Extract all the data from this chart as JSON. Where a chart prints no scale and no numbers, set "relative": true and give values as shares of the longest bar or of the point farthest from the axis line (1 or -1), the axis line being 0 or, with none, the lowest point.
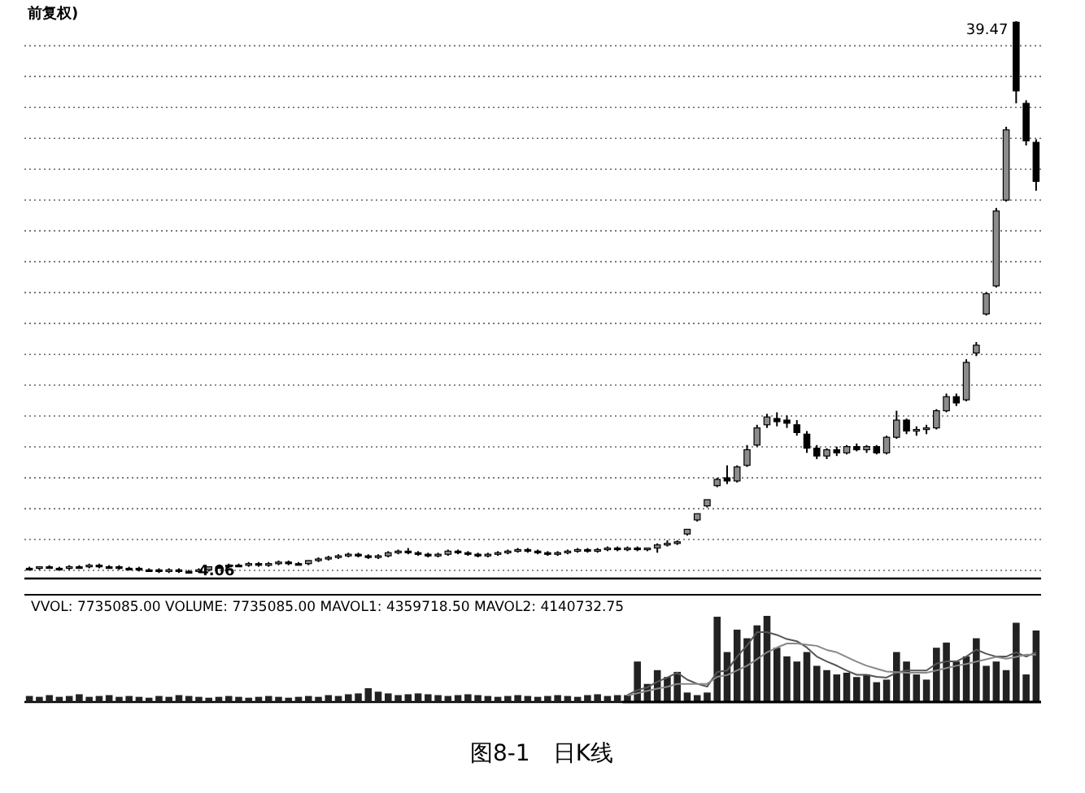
{
  "chart_data": [
    {
      "type": "candlestick",
      "title": "前复权)",
      "color": "#000000",
      "grid": "y",
      "categories": [
        null,
        null,
        null,
        null,
        null,
        null,
        null,
        null,
        null,
        null,
        null,
        null,
        null,
        null,
        null,
        null,
        null,
        null,
        null,
        null,
        null,
        null,
        null,
        null,
        null,
        null,
        null,
        null,
        null,
        null,
        null,
        null,
        null,
        null,
        null,
        null,
        null,
        null,
        null,
        null,
        null,
        null,
        null,
        null,
        null,
        null,
        null,
        null,
        null,
        null,
        null,
        null,
        null,
        null,
        null,
        null,
        null,
        null,
        null,
        null,
        null,
        null,
        null,
        null,
        null,
        null,
        null,
        null,
        null,
        null,
        null,
        null,
        null,
        null,
        null,
        null,
        null,
        null,
        null,
        null,
        null,
        null,
        null,
        null,
        null,
        null,
        null,
        null,
        null,
        null,
        null,
        null,
        null,
        null,
        null,
        null,
        null,
        null,
        null,
        null,
        null,
        null
      ],
      "yticks": [
        {
          "value": 4.27,
          "label": null
        },
        {
          "value": 6.25,
          "label": null
        },
        {
          "value": 8.22,
          "label": null
        },
        {
          "value": 10.2,
          "label": null
        },
        {
          "value": 12.18,
          "label": null
        },
        {
          "value": 14.16,
          "label": null
        },
        {
          "value": 16.14,
          "label": null
        },
        {
          "value": 18.11,
          "label": null
        },
        {
          "value": 20.09,
          "label": null
        },
        {
          "value": 22.07,
          "label": null
        },
        {
          "value": 24.05,
          "label": null
        },
        {
          "value": 26.03,
          "label": null
        },
        {
          "value": 28.0,
          "label": null
        },
        {
          "value": 29.98,
          "label": null
        },
        {
          "value": 31.96,
          "label": null
        },
        {
          "value": 33.94,
          "label": null
        },
        {
          "value": 35.92,
          "label": null
        },
        {
          "value": 37.89,
          "label": null
        }
      ],
      "annotations": [
        "39.47",
        "4.06"
      ],
      "ohlc": [
        [
          4.4,
          4.5,
          4.3,
          4.4
        ],
        [
          4.4,
          4.5,
          4.3,
          4.5
        ],
        [
          4.5,
          4.6,
          4.4,
          4.4
        ],
        [
          4.4,
          4.5,
          4.3,
          4.4
        ],
        [
          4.4,
          4.6,
          4.3,
          4.5
        ],
        [
          4.5,
          4.6,
          4.4,
          4.5
        ],
        [
          4.5,
          4.7,
          4.4,
          4.6
        ],
        [
          4.6,
          4.7,
          4.4,
          4.5
        ],
        [
          4.5,
          4.6,
          4.4,
          4.5
        ],
        [
          4.5,
          4.6,
          4.3,
          4.4
        ],
        [
          4.4,
          4.5,
          4.3,
          4.4
        ],
        [
          4.4,
          4.5,
          4.2,
          4.3
        ],
        [
          4.3,
          4.4,
          4.2,
          4.3
        ],
        [
          4.3,
          4.4,
          4.1,
          4.2
        ],
        [
          4.2,
          4.4,
          4.1,
          4.3
        ],
        [
          4.3,
          4.4,
          4.1,
          4.2
        ],
        [
          4.2,
          4.3,
          4.06,
          4.2
        ],
        [
          4.2,
          4.4,
          4.1,
          4.3
        ],
        [
          4.3,
          4.5,
          4.2,
          4.5
        ],
        [
          4.5,
          4.6,
          4.4,
          4.5
        ],
        [
          4.5,
          4.7,
          4.4,
          4.6
        ],
        [
          4.6,
          4.7,
          4.5,
          4.6
        ],
        [
          4.6,
          4.8,
          4.5,
          4.7
        ],
        [
          4.7,
          4.8,
          4.5,
          4.6
        ],
        [
          4.6,
          4.8,
          4.5,
          4.7
        ],
        [
          4.7,
          4.9,
          4.6,
          4.8
        ],
        [
          4.8,
          4.9,
          4.6,
          4.7
        ],
        [
          4.7,
          4.8,
          4.6,
          4.7
        ],
        [
          4.7,
          4.9,
          4.6,
          4.9
        ],
        [
          4.9,
          5.1,
          4.8,
          5.0
        ],
        [
          5.0,
          5.2,
          4.9,
          5.1
        ],
        [
          5.1,
          5.3,
          5.0,
          5.2
        ],
        [
          5.2,
          5.4,
          5.1,
          5.3
        ],
        [
          5.3,
          5.4,
          5.1,
          5.2
        ],
        [
          5.2,
          5.3,
          5.0,
          5.1
        ],
        [
          5.1,
          5.3,
          5.0,
          5.2
        ],
        [
          5.2,
          5.5,
          5.1,
          5.4
        ],
        [
          5.4,
          5.6,
          5.3,
          5.5
        ],
        [
          5.5,
          5.7,
          5.3,
          5.4
        ],
        [
          5.4,
          5.5,
          5.2,
          5.3
        ],
        [
          5.3,
          5.4,
          5.1,
          5.2
        ],
        [
          5.2,
          5.4,
          5.1,
          5.3
        ],
        [
          5.3,
          5.6,
          5.2,
          5.5
        ],
        [
          5.5,
          5.6,
          5.3,
          5.4
        ],
        [
          5.4,
          5.5,
          5.2,
          5.3
        ],
        [
          5.3,
          5.4,
          5.1,
          5.2
        ],
        [
          5.2,
          5.4,
          5.1,
          5.3
        ],
        [
          5.3,
          5.5,
          5.2,
          5.4
        ],
        [
          5.4,
          5.6,
          5.3,
          5.5
        ],
        [
          5.5,
          5.7,
          5.4,
          5.6
        ],
        [
          5.6,
          5.7,
          5.4,
          5.5
        ],
        [
          5.5,
          5.6,
          5.3,
          5.4
        ],
        [
          5.4,
          5.5,
          5.2,
          5.3
        ],
        [
          5.3,
          5.5,
          5.2,
          5.4
        ],
        [
          5.4,
          5.6,
          5.3,
          5.5
        ],
        [
          5.5,
          5.7,
          5.4,
          5.6
        ],
        [
          5.6,
          5.7,
          5.4,
          5.5
        ],
        [
          5.5,
          5.7,
          5.4,
          5.6
        ],
        [
          5.6,
          5.8,
          5.5,
          5.7
        ],
        [
          5.7,
          5.8,
          5.5,
          5.6
        ],
        [
          5.6,
          5.8,
          5.5,
          5.7
        ],
        [
          5.7,
          5.8,
          5.5,
          5.6
        ],
        [
          5.6,
          5.7,
          5.5,
          5.7
        ],
        [
          5.7,
          6.0,
          5.4,
          5.9
        ],
        [
          5.9,
          6.2,
          5.8,
          6.0
        ],
        [
          6.0,
          6.2,
          5.9,
          6.1
        ],
        [
          6.6,
          6.9,
          6.5,
          6.9
        ],
        [
          7.5,
          7.9,
          7.4,
          7.9
        ],
        [
          8.4,
          8.8,
          8.3,
          8.8
        ],
        [
          9.7,
          10.2,
          9.6,
          10.1
        ],
        [
          10.2,
          11.0,
          9.8,
          10.0
        ],
        [
          10.0,
          11.0,
          9.9,
          10.9
        ],
        [
          11.0,
          12.3,
          10.9,
          12.0
        ],
        [
          12.3,
          13.6,
          12.2,
          13.4
        ],
        [
          13.6,
          14.3,
          13.4,
          14.1
        ],
        [
          14.0,
          14.4,
          13.5,
          13.8
        ],
        [
          13.9,
          14.2,
          13.4,
          13.7
        ],
        [
          13.6,
          13.9,
          12.9,
          13.1
        ],
        [
          13.0,
          13.2,
          11.8,
          12.1
        ],
        [
          12.1,
          12.3,
          11.4,
          11.6
        ],
        [
          11.6,
          12.1,
          11.4,
          12.0
        ],
        [
          12.0,
          12.2,
          11.6,
          11.8
        ],
        [
          11.8,
          12.3,
          11.7,
          12.2
        ],
        [
          12.2,
          12.4,
          11.9,
          12.0
        ],
        [
          12.0,
          12.3,
          11.8,
          12.2
        ],
        [
          12.2,
          12.3,
          11.7,
          11.8
        ],
        [
          11.8,
          12.9,
          11.7,
          12.8
        ],
        [
          12.8,
          14.5,
          12.7,
          13.9
        ],
        [
          13.9,
          14.0,
          13.0,
          13.2
        ],
        [
          13.2,
          13.5,
          12.9,
          13.3
        ],
        [
          13.3,
          13.6,
          13.0,
          13.4
        ],
        [
          13.4,
          14.6,
          13.3,
          14.5
        ],
        [
          14.5,
          15.6,
          14.4,
          15.4
        ],
        [
          15.4,
          15.6,
          14.8,
          15.0
        ],
        [
          15.2,
          17.8,
          15.1,
          17.6
        ],
        [
          18.2,
          18.9,
          18.0,
          18.7
        ],
        [
          20.7,
          22.1,
          20.6,
          22.0
        ],
        [
          22.5,
          27.5,
          22.4,
          27.3
        ],
        [
          28.0,
          32.7,
          27.9,
          32.5
        ],
        [
          39.4,
          39.47,
          34.2,
          35.0
        ],
        [
          34.2,
          34.4,
          31.5,
          31.8
        ],
        [
          31.7,
          31.9,
          28.6,
          29.2
        ]
      ]
    },
    {
      "type": "bar",
      "relative": true,
      "title": "VVOL: 7735085.00  VOLUME: 7735085.00 MAVOL1: 4359718.50 MAVOL2: 4140732.75",
      "color": "#222222",
      "annotations": [
        "图8-1　日K线"
      ],
      "categories": [
        null,
        null,
        null,
        null,
        null,
        null,
        null,
        null,
        null,
        null,
        null,
        null,
        null,
        null,
        null,
        null,
        null,
        null,
        null,
        null,
        null,
        null,
        null,
        null,
        null,
        null,
        null,
        null,
        null,
        null,
        null,
        null,
        null,
        null,
        null,
        null,
        null,
        null,
        null,
        null,
        null,
        null,
        null,
        null,
        null,
        null,
        null,
        null,
        null,
        null,
        null,
        null,
        null,
        null,
        null,
        null,
        null,
        null,
        null,
        null,
        null,
        null,
        null,
        null,
        null,
        null,
        null,
        null,
        null,
        null,
        null,
        null,
        null,
        null,
        null,
        null,
        null,
        null,
        null,
        null,
        null,
        null,
        null,
        null,
        null,
        null,
        null,
        null,
        null,
        null,
        null,
        null,
        null,
        null,
        null,
        null,
        null,
        null,
        null,
        null,
        null,
        null
      ],
      "values": [
        0.07,
        0.06,
        0.08,
        0.06,
        0.07,
        0.09,
        0.06,
        0.07,
        0.08,
        0.06,
        0.07,
        0.06,
        0.05,
        0.07,
        0.06,
        0.08,
        0.07,
        0.06,
        0.05,
        0.06,
        0.07,
        0.06,
        0.05,
        0.06,
        0.07,
        0.06,
        0.05,
        0.06,
        0.07,
        0.06,
        0.08,
        0.07,
        0.09,
        0.1,
        0.16,
        0.12,
        0.1,
        0.08,
        0.09,
        0.1,
        0.09,
        0.08,
        0.07,
        0.08,
        0.09,
        0.08,
        0.07,
        0.06,
        0.07,
        0.08,
        0.07,
        0.06,
        0.07,
        0.08,
        0.07,
        0.06,
        0.08,
        0.09,
        0.07,
        0.08,
        0.08,
        0.47,
        0.21,
        0.37,
        0.29,
        0.35,
        0.11,
        0.08,
        0.11,
        0.99,
        0.58,
        0.84,
        0.74,
        0.89,
        1,
        0.63,
        0.53,
        0.47,
        0.58,
        0.42,
        0.37,
        0.32,
        0.34,
        0.29,
        0.32,
        0.23,
        0.26,
        0.58,
        0.47,
        0.32,
        0.26,
        0.63,
        0.69,
        0.47,
        0.53,
        0.74,
        0.42,
        0.47,
        0.37,
        0.92,
        0.32,
        0.83
      ]
    },
    {
      "type": "line",
      "relative": true,
      "categories": [
        null,
        null,
        null,
        null,
        null,
        null,
        null,
        null,
        null,
        null,
        null,
        null,
        null,
        null,
        null,
        null,
        null,
        null,
        null,
        null,
        null,
        null,
        null,
        null,
        null,
        null,
        null,
        null,
        null,
        null,
        null,
        null,
        null,
        null,
        null,
        null,
        null,
        null,
        null,
        null,
        null,
        null
      ],
      "series": [
        {
          "color": "#555555",
          "values": [
            0.1,
            0.17,
            0.21,
            0.29,
            0.35,
            0.42,
            0.32,
            0.26,
            0.22,
            0.43,
            0.45,
            0.65,
            0.81,
            1,
            1,
            0.96,
            0.9,
            0.87,
            0.78,
            0.65,
            0.58,
            0.52,
            0.45,
            0.39,
            0.39,
            0.36,
            0.35,
            0.42,
            0.45,
            0.45,
            0.45,
            0.55,
            0.58,
            0.58,
            0.65,
            0.75,
            0.69,
            0.65,
            0.65,
            0.71,
            0.65,
            0.71
          ]
        }
      ]
    },
    {
      "type": "line",
      "relative": true,
      "categories": [
        null,
        null,
        null,
        null,
        null,
        null,
        null,
        null,
        null,
        null,
        null,
        null,
        null,
        null,
        null,
        null,
        null,
        null,
        null,
        null,
        null,
        null,
        null,
        null,
        null,
        null,
        null,
        null,
        null,
        null,
        null,
        null,
        null,
        null,
        null,
        null,
        null,
        null,
        null,
        null,
        null,
        null
      ],
      "series": [
        {
          "color": "#888888",
          "values": [
            0.11,
            0.15,
            0.19,
            0.23,
            0.26,
            0.31,
            0.31,
            0.31,
            0.31,
            0.43,
            0.46,
            0.54,
            0.62,
            0.73,
            0.85,
            0.93,
            1,
            1,
            0.98,
            0.96,
            0.89,
            0.85,
            0.77,
            0.69,
            0.62,
            0.57,
            0.52,
            0.51,
            0.5,
            0.5,
            0.5,
            0.54,
            0.58,
            0.62,
            0.65,
            0.69,
            0.73,
            0.77,
            0.74,
            0.77,
            0.81,
            0.81
          ]
        }
      ]
    }
  ]
}
